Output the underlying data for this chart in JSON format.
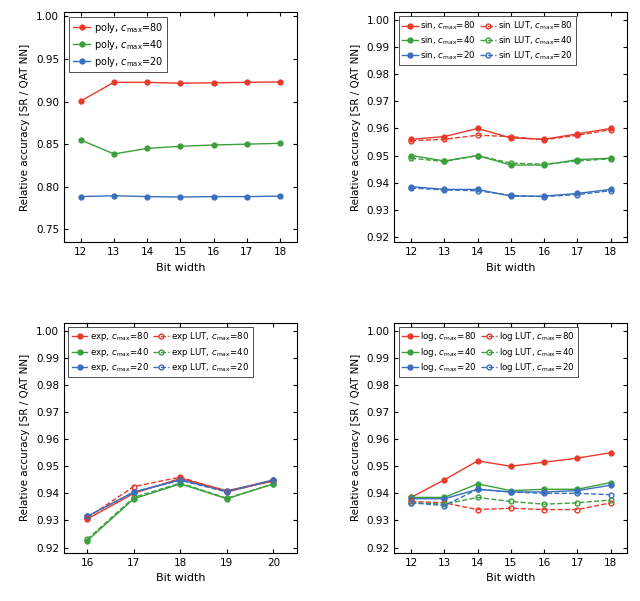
{
  "poly": {
    "x": [
      12,
      13,
      14,
      15,
      16,
      17,
      18
    ],
    "c80": [
      0.9005,
      0.9225,
      0.9225,
      0.9215,
      0.922,
      0.9225,
      0.923
    ],
    "c40": [
      0.855,
      0.8385,
      0.845,
      0.8475,
      0.849,
      0.85,
      0.851
    ],
    "c20": [
      0.7885,
      0.7895,
      0.7885,
      0.788,
      0.7885,
      0.7885,
      0.789
    ],
    "ylim": [
      0.735,
      1.005
    ],
    "yticks": [
      0.75,
      0.8,
      0.85,
      0.9,
      0.95,
      1.0
    ]
  },
  "sin": {
    "x": [
      12,
      13,
      14,
      15,
      16,
      17,
      18
    ],
    "c80": [
      0.956,
      0.957,
      0.96,
      0.9565,
      0.956,
      0.958,
      0.96
    ],
    "c80_lut": [
      0.9555,
      0.956,
      0.9575,
      0.957,
      0.9558,
      0.9575,
      0.9595
    ],
    "c40": [
      0.95,
      0.948,
      0.95,
      0.9465,
      0.9465,
      0.9485,
      0.949
    ],
    "c40_lut": [
      0.949,
      0.9478,
      0.95,
      0.9472,
      0.9468,
      0.948,
      0.9488
    ],
    "c20": [
      0.9385,
      0.9375,
      0.9375,
      0.935,
      0.935,
      0.936,
      0.9375
    ],
    "c20_lut": [
      0.938,
      0.9373,
      0.937,
      0.9353,
      0.9348,
      0.9356,
      0.937
    ],
    "ylim": [
      0.918,
      1.003
    ],
    "yticks": [
      0.92,
      0.93,
      0.94,
      0.95,
      0.96,
      0.97,
      0.98,
      0.99,
      1.0
    ]
  },
  "exp": {
    "x": [
      16,
      17,
      18,
      19,
      20
    ],
    "c80": [
      0.9305,
      0.94,
      0.9455,
      0.941,
      0.9445
    ],
    "c80_lut": [
      0.931,
      0.9425,
      0.946,
      0.9405,
      0.9448
    ],
    "c40": [
      0.9225,
      0.938,
      0.9435,
      0.938,
      0.9435
    ],
    "c40_lut": [
      0.923,
      0.9385,
      0.9438,
      0.9382,
      0.9435
    ],
    "c20": [
      0.9315,
      0.9405,
      0.945,
      0.9408,
      0.945
    ],
    "c20_lut": [
      0.9315,
      0.9405,
      0.9448,
      0.9405,
      0.9448
    ],
    "ylim": [
      0.918,
      1.003
    ],
    "yticks": [
      0.92,
      0.93,
      0.94,
      0.95,
      0.96,
      0.97,
      0.98,
      0.99,
      1.0
    ]
  },
  "log": {
    "x": [
      12,
      13,
      14,
      15,
      16,
      17,
      18
    ],
    "c80": [
      0.9385,
      0.945,
      0.952,
      0.95,
      0.9515,
      0.953,
      0.955
    ],
    "c80_lut": [
      0.937,
      0.9365,
      0.934,
      0.9345,
      0.934,
      0.934,
      0.9365
    ],
    "c40": [
      0.9385,
      0.9385,
      0.9435,
      0.941,
      0.9415,
      0.9415,
      0.944
    ],
    "c40_lut": [
      0.9365,
      0.936,
      0.9385,
      0.937,
      0.936,
      0.9365,
      0.9375
    ],
    "c20": [
      0.938,
      0.938,
      0.9415,
      0.9405,
      0.9405,
      0.941,
      0.943
    ],
    "c20_lut": [
      0.9365,
      0.9355,
      0.9415,
      0.9405,
      0.94,
      0.94,
      0.9395
    ],
    "ylim": [
      0.918,
      1.003
    ],
    "yticks": [
      0.92,
      0.93,
      0.94,
      0.95,
      0.96,
      0.97,
      0.98,
      0.99,
      1.0
    ]
  },
  "colors": {
    "red": "#e8392a",
    "green": "#3ba03b",
    "blue": "#3a6fbf"
  },
  "ylabel": "Relative accuracy [SR / QAT NN]",
  "xlabel": "Bit width"
}
